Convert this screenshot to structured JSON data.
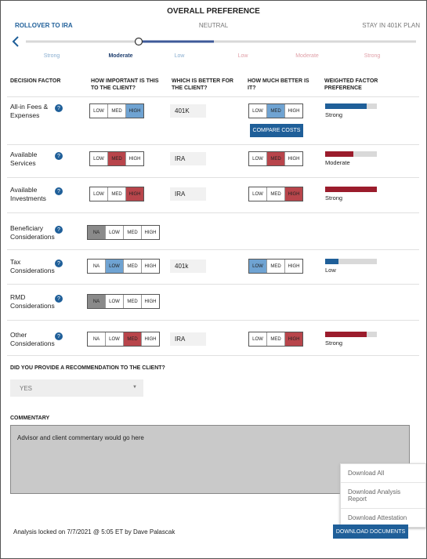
{
  "header": {
    "title": "OVERALL PREFERENCE",
    "left_label": "ROLLOVER TO IRA",
    "center_label": "NEUTRAL",
    "right_label": "STAY IN 401K PLAN",
    "scale_labels": [
      "Strong",
      "Moderate",
      "Low",
      "Low",
      "Moderate",
      "Strong"
    ],
    "selected_scale": 1
  },
  "table": {
    "columns": [
      "DECISION FACTOR",
      "HOW IMPORTANT IS THIS TO THE CLIENT?",
      "WHICH  IS BETTER FOR THE CLIENT?",
      "HOW MUCH BETTER IS IT?",
      "WEIGHTED FACTOR PREFERENCE"
    ],
    "help_icon": "?",
    "compare_button": "COMPARE COSTS",
    "rows": [
      {
        "factor": "All-in Fees & Expenses",
        "importance": {
          "options": [
            "LOW",
            "MED",
            "HIGH"
          ],
          "selected": 2
        },
        "better": "401K",
        "how_much": {
          "options": [
            "LOW",
            "MED",
            "HIGH"
          ],
          "selected": 1
        },
        "color": "#1f5f99",
        "selected_color": "#6fa3d2",
        "weight": 80,
        "weight_label": "Strong",
        "compare": true
      },
      {
        "factor": "Available Services",
        "importance": {
          "options": [
            "LOW",
            "MED",
            "HIGH"
          ],
          "selected": 1
        },
        "better": "IRA",
        "how_much": {
          "options": [
            "LOW",
            "MED",
            "HIGH"
          ],
          "selected": 1
        },
        "color": "#9b1c2c",
        "selected_color": "#b8454b",
        "weight": 55,
        "weight_label": "Moderate"
      },
      {
        "factor": "Available Investments",
        "importance": {
          "options": [
            "LOW",
            "MED",
            "HIGH"
          ],
          "selected": 2
        },
        "better": "IRA",
        "how_much": {
          "options": [
            "LOW",
            "MED",
            "HIGH"
          ],
          "selected": 2
        },
        "color": "#9b1c2c",
        "selected_color": "#b8454b",
        "weight": 100,
        "weight_label": "Strong"
      },
      {
        "factor": "Beneficiary Considerations",
        "importance": {
          "options": [
            "NA",
            "LOW",
            "MED",
            "HIGH"
          ],
          "selected": 0
        },
        "color": "#777777",
        "selected_color": "#8a8a8a"
      },
      {
        "factor": "Tax Considerations",
        "importance": {
          "options": [
            "NA",
            "LOW",
            "MED",
            "HIGH"
          ],
          "selected": 1
        },
        "better": "401k",
        "how_much": {
          "options": [
            "LOW",
            "MED",
            "HIGH"
          ],
          "selected": 0
        },
        "color": "#1f5f99",
        "selected_color": "#6fa3d2",
        "weight": 25,
        "weight_label": "Low"
      },
      {
        "factor": "RMD Considerations",
        "importance": {
          "options": [
            "NA",
            "LOW",
            "MED",
            "HIGH"
          ],
          "selected": 0
        },
        "color": "#777777",
        "selected_color": "#8a8a8a"
      },
      {
        "factor": "Other Considerations",
        "importance": {
          "options": [
            "NA",
            "LOW",
            "MED",
            "HIGH"
          ],
          "selected": 2
        },
        "better": "IRA",
        "how_much": {
          "options": [
            "LOW",
            "MED",
            "HIGH"
          ],
          "selected": 2
        },
        "color": "#9b1c2c",
        "selected_color": "#b8454b",
        "weight": 80,
        "weight_label": "Strong"
      }
    ]
  },
  "recommendation": {
    "question": "DID YOU PROVIDE A RECOMMENDATION TO THE CLIENT?",
    "answer": "YES"
  },
  "commentary": {
    "title": "COMMENTARY",
    "text": "Advisor and client commentary would go here"
  },
  "footer": {
    "locked_text": "Analysis locked on 7/7/2021 @ 5:05 ET by Dave Palascak",
    "download_button": "DOWNLOAD DOCUMENTS",
    "menu": [
      "Download All",
      "Download Analysis Report",
      "Download Attestation"
    ]
  }
}
